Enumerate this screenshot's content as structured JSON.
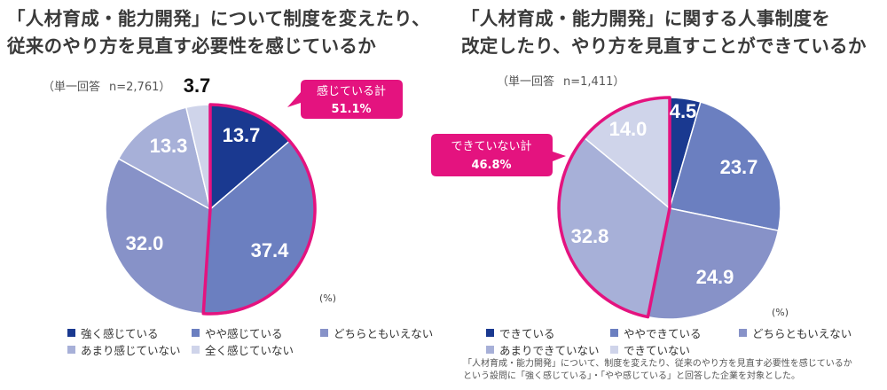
{
  "left": {
    "title_line1": "「人材育成・能力開発」について制度を変えたり、",
    "title_line2": "従来のやり方を見直す必要性を感じているか",
    "answer_type": "（単一回答",
    "n": "n=2,761）",
    "percent_unit": "(%)",
    "callout": {
      "label": "感じている計",
      "value": "51.1%"
    }
  },
  "right": {
    "title_line1": "「人材育成・能力開発」に関する人事制度を",
    "title_line2": "改定したり、やり方を見直すことができているか",
    "answer_type": "（単一回答",
    "n": "n=1,411）",
    "percent_unit": "(%)",
    "callout": {
      "label": "できていない計",
      "value": "46.8%"
    },
    "footnote_line1": "「人材育成・能力開発」について、制度を変えたり、従来のやり方を見直す必要性を感じているか",
    "footnote_line2": "という設問に「強く感じている」・「やや感じている」と回答した企業を対象とした。"
  },
  "chart_data": [
    {
      "type": "pie",
      "title": "「人材育成・能力開発」について制度を変えたり、従来のやり方を見直す必要性を感じているか",
      "categories": [
        "強く感じている",
        "やや感じている",
        "どちらともいえない",
        "あまり感じていない",
        "全く感じていない"
      ],
      "values": [
        13.7,
        37.4,
        32.0,
        13.3,
        3.7
      ],
      "labels": [
        "13.7",
        "37.4",
        "32.0",
        "13.3",
        "3.7"
      ],
      "colors": [
        "#1a3990",
        "#6b7fc0",
        "#8792c8",
        "#a7b0d8",
        "#cfd4ea"
      ],
      "highlight": {
        "label": "感じている計",
        "value": 51.1,
        "indices": [
          0,
          1
        ]
      },
      "legend_position": "bottom",
      "unit": "%"
    },
    {
      "type": "pie",
      "title": "「人材育成・能力開発」に関する人事制度を改定したり、やり方を見直すことができているか",
      "categories": [
        "できている",
        "ややできている",
        "どちらともいえない",
        "あまりできていない",
        "できていない"
      ],
      "values": [
        4.5,
        23.7,
        24.9,
        32.8,
        14.0
      ],
      "labels": [
        "4.5",
        "23.7",
        "24.9",
        "32.8",
        "14.0"
      ],
      "colors": [
        "#1a3990",
        "#6b7fc0",
        "#8792c8",
        "#a7b0d8",
        "#cfd4ea"
      ],
      "highlight": {
        "label": "できていない計",
        "value": 46.8,
        "indices": [
          3,
          4
        ]
      },
      "legend_position": "bottom",
      "unit": "%"
    }
  ]
}
